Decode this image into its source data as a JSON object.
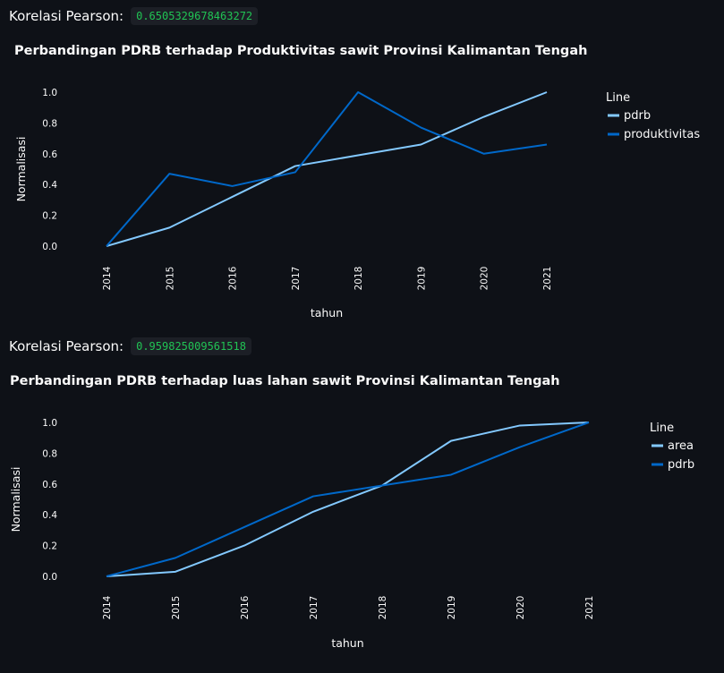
{
  "section1": {
    "corr_label": "Korelasi Pearson:",
    "corr_value": "0.6505329678463272",
    "title": "Perbandingan PDRB terhadap Produktivitas sawit Provinsi Kalimantan Tengah"
  },
  "section2": {
    "corr_label": "Korelasi Pearson:",
    "corr_value": "0.959825009561518",
    "title": "Perbandingan PDRB terhadap luas lahan sawit Provinsi Kalimantan Tengah"
  },
  "colors": {
    "light_blue": "#83c9ff",
    "dark_blue": "#0068c9",
    "background": "#0e1117",
    "code_green": "#21c354"
  },
  "chart_data": [
    {
      "type": "line",
      "title": "Perbandingan PDRB terhadap Produktivitas sawit Provinsi Kalimantan Tengah",
      "xlabel": "tahun",
      "ylabel": "Normalisasi",
      "x": [
        "2014",
        "2015",
        "2016",
        "2017",
        "2018",
        "2019",
        "2020",
        "2021"
      ],
      "ylim": [
        -0.03,
        1.03
      ],
      "yticks": [
        "0.0",
        "0.2",
        "0.4",
        "0.6",
        "0.8",
        "1.0"
      ],
      "legend_title": "Line",
      "legend_position": "right",
      "series": [
        {
          "name": "pdrb",
          "color": "#83c9ff",
          "values": [
            0.0,
            0.12,
            0.32,
            0.52,
            0.59,
            0.66,
            0.84,
            1.0
          ]
        },
        {
          "name": "produktivitas",
          "color": "#0068c9",
          "values": [
            0.0,
            0.47,
            0.39,
            0.48,
            1.0,
            0.77,
            0.6,
            0.66
          ]
        }
      ]
    },
    {
      "type": "line",
      "title": "Perbandingan PDRB terhadap luas lahan sawit Provinsi Kalimantan Tengah",
      "xlabel": "tahun",
      "ylabel": "Normalisasi",
      "x": [
        "2014",
        "2015",
        "2016",
        "2017",
        "2018",
        "2019",
        "2020",
        "2021"
      ],
      "ylim": [
        -0.03,
        1.03
      ],
      "yticks": [
        "0.0",
        "0.2",
        "0.4",
        "0.6",
        "0.8",
        "1.0"
      ],
      "legend_title": "Line",
      "legend_position": "right",
      "series": [
        {
          "name": "area",
          "color": "#83c9ff",
          "values": [
            0.0,
            0.03,
            0.2,
            0.42,
            0.59,
            0.88,
            0.98,
            1.0
          ]
        },
        {
          "name": "pdrb",
          "color": "#0068c9",
          "values": [
            0.0,
            0.12,
            0.32,
            0.52,
            0.59,
            0.66,
            0.84,
            1.0
          ]
        }
      ]
    }
  ]
}
